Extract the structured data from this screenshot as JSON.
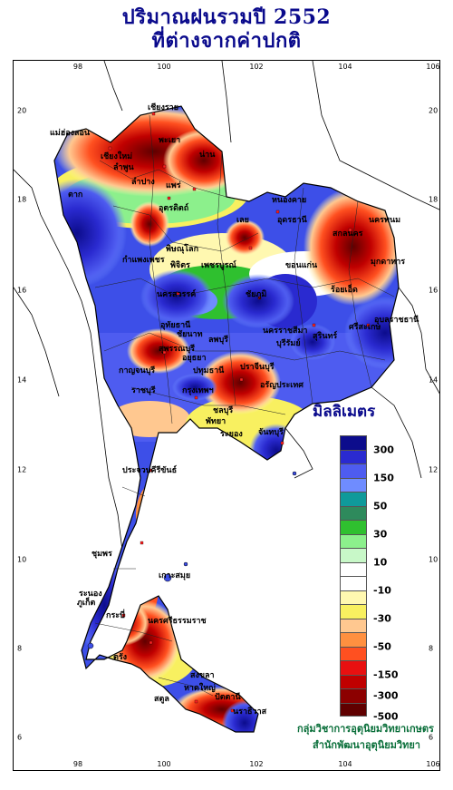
{
  "title": {
    "line1": "ปริมาณฝนรวมปี  2552",
    "line2": "ที่ต่างจากค่าปกติ"
  },
  "axes": {
    "x_ticks": [
      "98",
      "100",
      "102",
      "104",
      "106"
    ],
    "y_ticks": [
      "20",
      "18",
      "16",
      "14",
      "12",
      "10",
      "8",
      "6"
    ]
  },
  "legend": {
    "title": "มิลลิเมตร",
    "labels": [
      "300",
      "150",
      "50",
      "30",
      "10",
      "-10",
      "-30",
      "-50",
      "-150",
      "-300",
      "-500"
    ],
    "colors": [
      "#0c0c8c",
      "#2a2ad0",
      "#4e5cf0",
      "#6f8cff",
      "#0f9a9a",
      "#2e8a5c",
      "#2fc02f",
      "#8cf08c",
      "#c8f8c8",
      "#ffffff",
      "#ffffff",
      "#fff8b0",
      "#f8f060",
      "#ffc890",
      "#ff9040",
      "#ff5020",
      "#e81010",
      "#c00000",
      "#8c0000",
      "#600000"
    ]
  },
  "provinces": [
    "เชียงราย",
    "แม่ฮ่องสอน",
    "เชียงใหม่",
    "ลำพูน",
    "พะเยา",
    "น่าน",
    "ลำปาง",
    "แพร่",
    "อุตรดิตถ์",
    "หนองคาย",
    "เลย",
    "อุดรธานี",
    "นครพนม",
    "สกลนคร",
    "มุกดาหาร",
    "ตาก",
    "พิษณุโลก",
    "กำแพงเพชร",
    "พิจิตร",
    "เพชรบูรณ์",
    "ขอนแก่น",
    "นครสวรรค์",
    "ชัยภูมิ",
    "ร้อยเอ็ด",
    "อุบลราชธานี",
    "อุทัยธานี",
    "ชัยนาท",
    "ลพบุรี",
    "นครราชสีมา",
    "บุรีรัมย์",
    "สุรินทร์",
    "ศรีสะเกษ",
    "สุพรรณบุรี",
    "อยุธยา",
    "ปราจีนบุรี",
    "กาญจนบุรี",
    "ปทุมธานี",
    "อรัญประเทศ",
    "ราชบุรี",
    "กรุงเทพฯ",
    "ชลบุรี",
    "พัทยา",
    "ระยอง",
    "จันทบุรี",
    "ประจวบคีรีขันธ์",
    "ชุมพร",
    "ระนอง",
    "เกาะสมุย",
    "ภูเก็ต",
    "กระบี่",
    "นครศรีธรรมราช",
    "ตรัง",
    "สงขลา",
    "หาดใหญ่",
    "ปัตตานี",
    "นราธิวาส",
    "สตูล"
  ],
  "credit": {
    "line1": "กลุ่มวิชาการอุตุนิยมวิทยาเกษตร",
    "line2": "สำนักพัฒนาอุตุนิยมวิทยา"
  }
}
